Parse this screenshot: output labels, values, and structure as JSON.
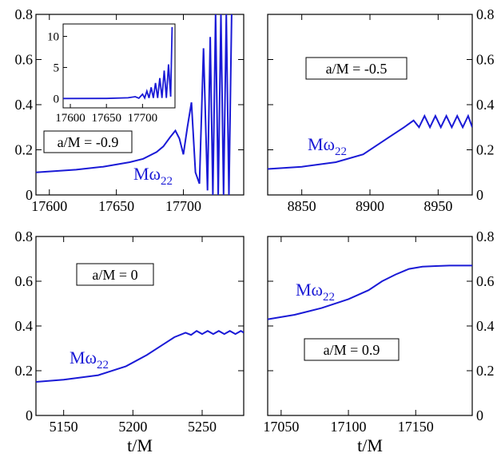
{
  "chart_data": [
    {
      "type": "line",
      "id": "tl",
      "xlim": [
        17590,
        17745
      ],
      "ylim": [
        0,
        0.8
      ],
      "xticks": [
        17600,
        17650,
        17700
      ],
      "yticks": [
        0,
        0.2,
        0.4,
        0.6,
        0.8
      ],
      "ytick_labels": [
        "0",
        "0.2",
        "0.4",
        "0.6",
        "0.8"
      ],
      "ytick_side": "left",
      "xlabel": "",
      "box_label": "a/M = -0.9",
      "curve_label": "Mω22",
      "curve_base": "Mω",
      "curve_sub": "22",
      "series": [
        {
          "color": "#1a1ad6",
          "x": [
            17590,
            17600,
            17620,
            17640,
            17660,
            17670,
            17680,
            17685,
            17690,
            17694,
            17697,
            17700,
            17703,
            17706,
            17709,
            17712,
            17715,
            17718,
            17720,
            17722,
            17724,
            17726,
            17728,
            17730,
            17732,
            17734,
            17736
          ],
          "y": [
            0.1,
            0.104,
            0.112,
            0.125,
            0.145,
            0.16,
            0.19,
            0.215,
            0.255,
            0.285,
            0.25,
            0.18,
            0.3,
            0.41,
            0.1,
            0.05,
            0.65,
            0.02,
            0.7,
            0.0,
            0.8,
            0.0,
            0.8,
            0.0,
            0.8,
            0.0,
            0.8
          ]
        }
      ],
      "inset": {
        "xlim": [
          17590,
          17745
        ],
        "ylim": [
          -1.5,
          12
        ],
        "xticks": [
          17600,
          17650,
          17700
        ],
        "yticks": [
          0,
          5,
          10
        ],
        "x": [
          17590,
          17650,
          17680,
          17690,
          17695,
          17700,
          17703,
          17706,
          17709,
          17712,
          17715,
          17718,
          17721,
          17724,
          17727,
          17730,
          17733,
          17736,
          17739,
          17741
        ],
        "y": [
          0,
          0.02,
          0.12,
          0.3,
          0.05,
          0.7,
          0.1,
          1.2,
          0.1,
          1.8,
          0.1,
          2.5,
          0.1,
          3.3,
          0.1,
          4.5,
          0.1,
          5.5,
          0.3,
          11.5
        ]
      }
    },
    {
      "type": "line",
      "id": "tr",
      "xlim": [
        8825,
        8975
      ],
      "ylim": [
        0,
        0.8
      ],
      "xticks": [
        8850,
        8900,
        8950
      ],
      "yticks": [
        0,
        0.2,
        0.4,
        0.6,
        0.8
      ],
      "ytick_labels": [
        "0",
        "0.2",
        "0.4",
        "0.6",
        "0.8"
      ],
      "ytick_side": "right",
      "xlabel": "",
      "box_label": "a/M = -0.5",
      "curve_label": "Mω22",
      "curve_base": "Mω",
      "curve_sub": "22",
      "series": [
        {
          "color": "#1a1ad6",
          "x": [
            8825,
            8850,
            8875,
            8895,
            8905,
            8915,
            8925,
            8932,
            8936,
            8940,
            8944,
            8948,
            8952,
            8956,
            8960,
            8964,
            8968,
            8972,
            8975
          ],
          "y": [
            0.115,
            0.125,
            0.145,
            0.18,
            0.22,
            0.26,
            0.3,
            0.33,
            0.3,
            0.35,
            0.3,
            0.35,
            0.3,
            0.35,
            0.3,
            0.35,
            0.3,
            0.35,
            0.3
          ]
        }
      ]
    },
    {
      "type": "line",
      "id": "bl",
      "xlim": [
        5130,
        5280
      ],
      "ylim": [
        0,
        0.8
      ],
      "xticks": [
        5150,
        5200,
        5250
      ],
      "yticks": [
        0,
        0.2,
        0.4,
        0.6,
        0.8
      ],
      "ytick_labels": [
        "0",
        "0.2",
        "0.4",
        "0.6",
        "0.8"
      ],
      "ytick_side": "left",
      "xlabel": "t/M",
      "box_label": "a/M = 0",
      "curve_label": "Mω22",
      "curve_base": "Mω",
      "curve_sub": "22",
      "series": [
        {
          "color": "#1a1ad6",
          "x": [
            5130,
            5150,
            5175,
            5195,
            5210,
            5220,
            5230,
            5238,
            5242,
            5246,
            5250,
            5254,
            5258,
            5262,
            5266,
            5270,
            5274,
            5278,
            5280
          ],
          "y": [
            0.15,
            0.16,
            0.18,
            0.22,
            0.27,
            0.31,
            0.35,
            0.37,
            0.36,
            0.378,
            0.364,
            0.378,
            0.364,
            0.378,
            0.364,
            0.378,
            0.364,
            0.378,
            0.37
          ]
        }
      ]
    },
    {
      "type": "line",
      "id": "br",
      "xlim": [
        17040,
        17192
      ],
      "ylim": [
        0,
        0.8
      ],
      "xticks": [
        17050,
        17100,
        17150
      ],
      "yticks": [
        0,
        0.2,
        0.4,
        0.6,
        0.8
      ],
      "ytick_labels": [
        "0",
        "0.2",
        "0.4",
        "0.6",
        "0.8"
      ],
      "ytick_side": "right",
      "xlabel": "t/M",
      "box_label": "a/M = 0.9",
      "curve_label": "Mω22",
      "curve_base": "Mω",
      "curve_sub": "22",
      "series": [
        {
          "color": "#1a1ad6",
          "x": [
            17040,
            17060,
            17080,
            17100,
            17115,
            17125,
            17135,
            17145,
            17155,
            17165,
            17175,
            17192
          ],
          "y": [
            0.43,
            0.45,
            0.48,
            0.52,
            0.56,
            0.6,
            0.63,
            0.655,
            0.665,
            0.668,
            0.67,
            0.67
          ]
        }
      ]
    }
  ]
}
